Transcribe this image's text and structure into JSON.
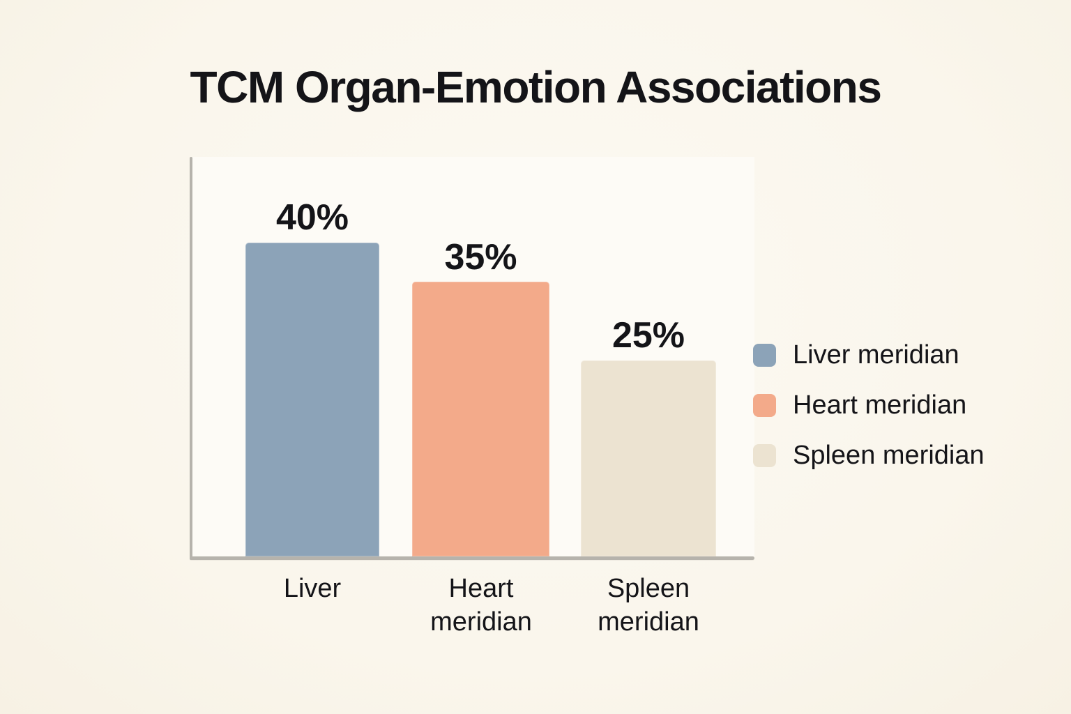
{
  "chart_data": {
    "type": "bar",
    "title": "TCM Organ-Emotion Associations",
    "xlabel": "",
    "ylabel": "",
    "ylim": [
      0,
      50
    ],
    "grid": false,
    "legend_position": "right",
    "categories": [
      "Liver",
      "Heart meridian",
      "Spleen meridian"
    ],
    "values": [
      40,
      35,
      25
    ],
    "bars": [
      {
        "category_label": "Liver",
        "value": 40,
        "value_label": "40%",
        "color": "#8ca3b8"
      },
      {
        "category_label": "Heart\nmeridian",
        "value": 35,
        "value_label": "35%",
        "color": "#f3aa8a"
      },
      {
        "category_label": "Spleen\nmeridian",
        "value": 25,
        "value_label": "25%",
        "color": "#ece3d1"
      }
    ],
    "legend": {
      "items": [
        {
          "label": "Liver meridian",
          "color": "#8ca3b8"
        },
        {
          "label": "Heart meridian",
          "color": "#f3aa8a"
        },
        {
          "label": "Spleen meridian",
          "color": "#ece3d1"
        }
      ]
    }
  },
  "colors": {
    "background": "#faf6ec",
    "axis": "#b6b3ac",
    "text": "#141418"
  }
}
